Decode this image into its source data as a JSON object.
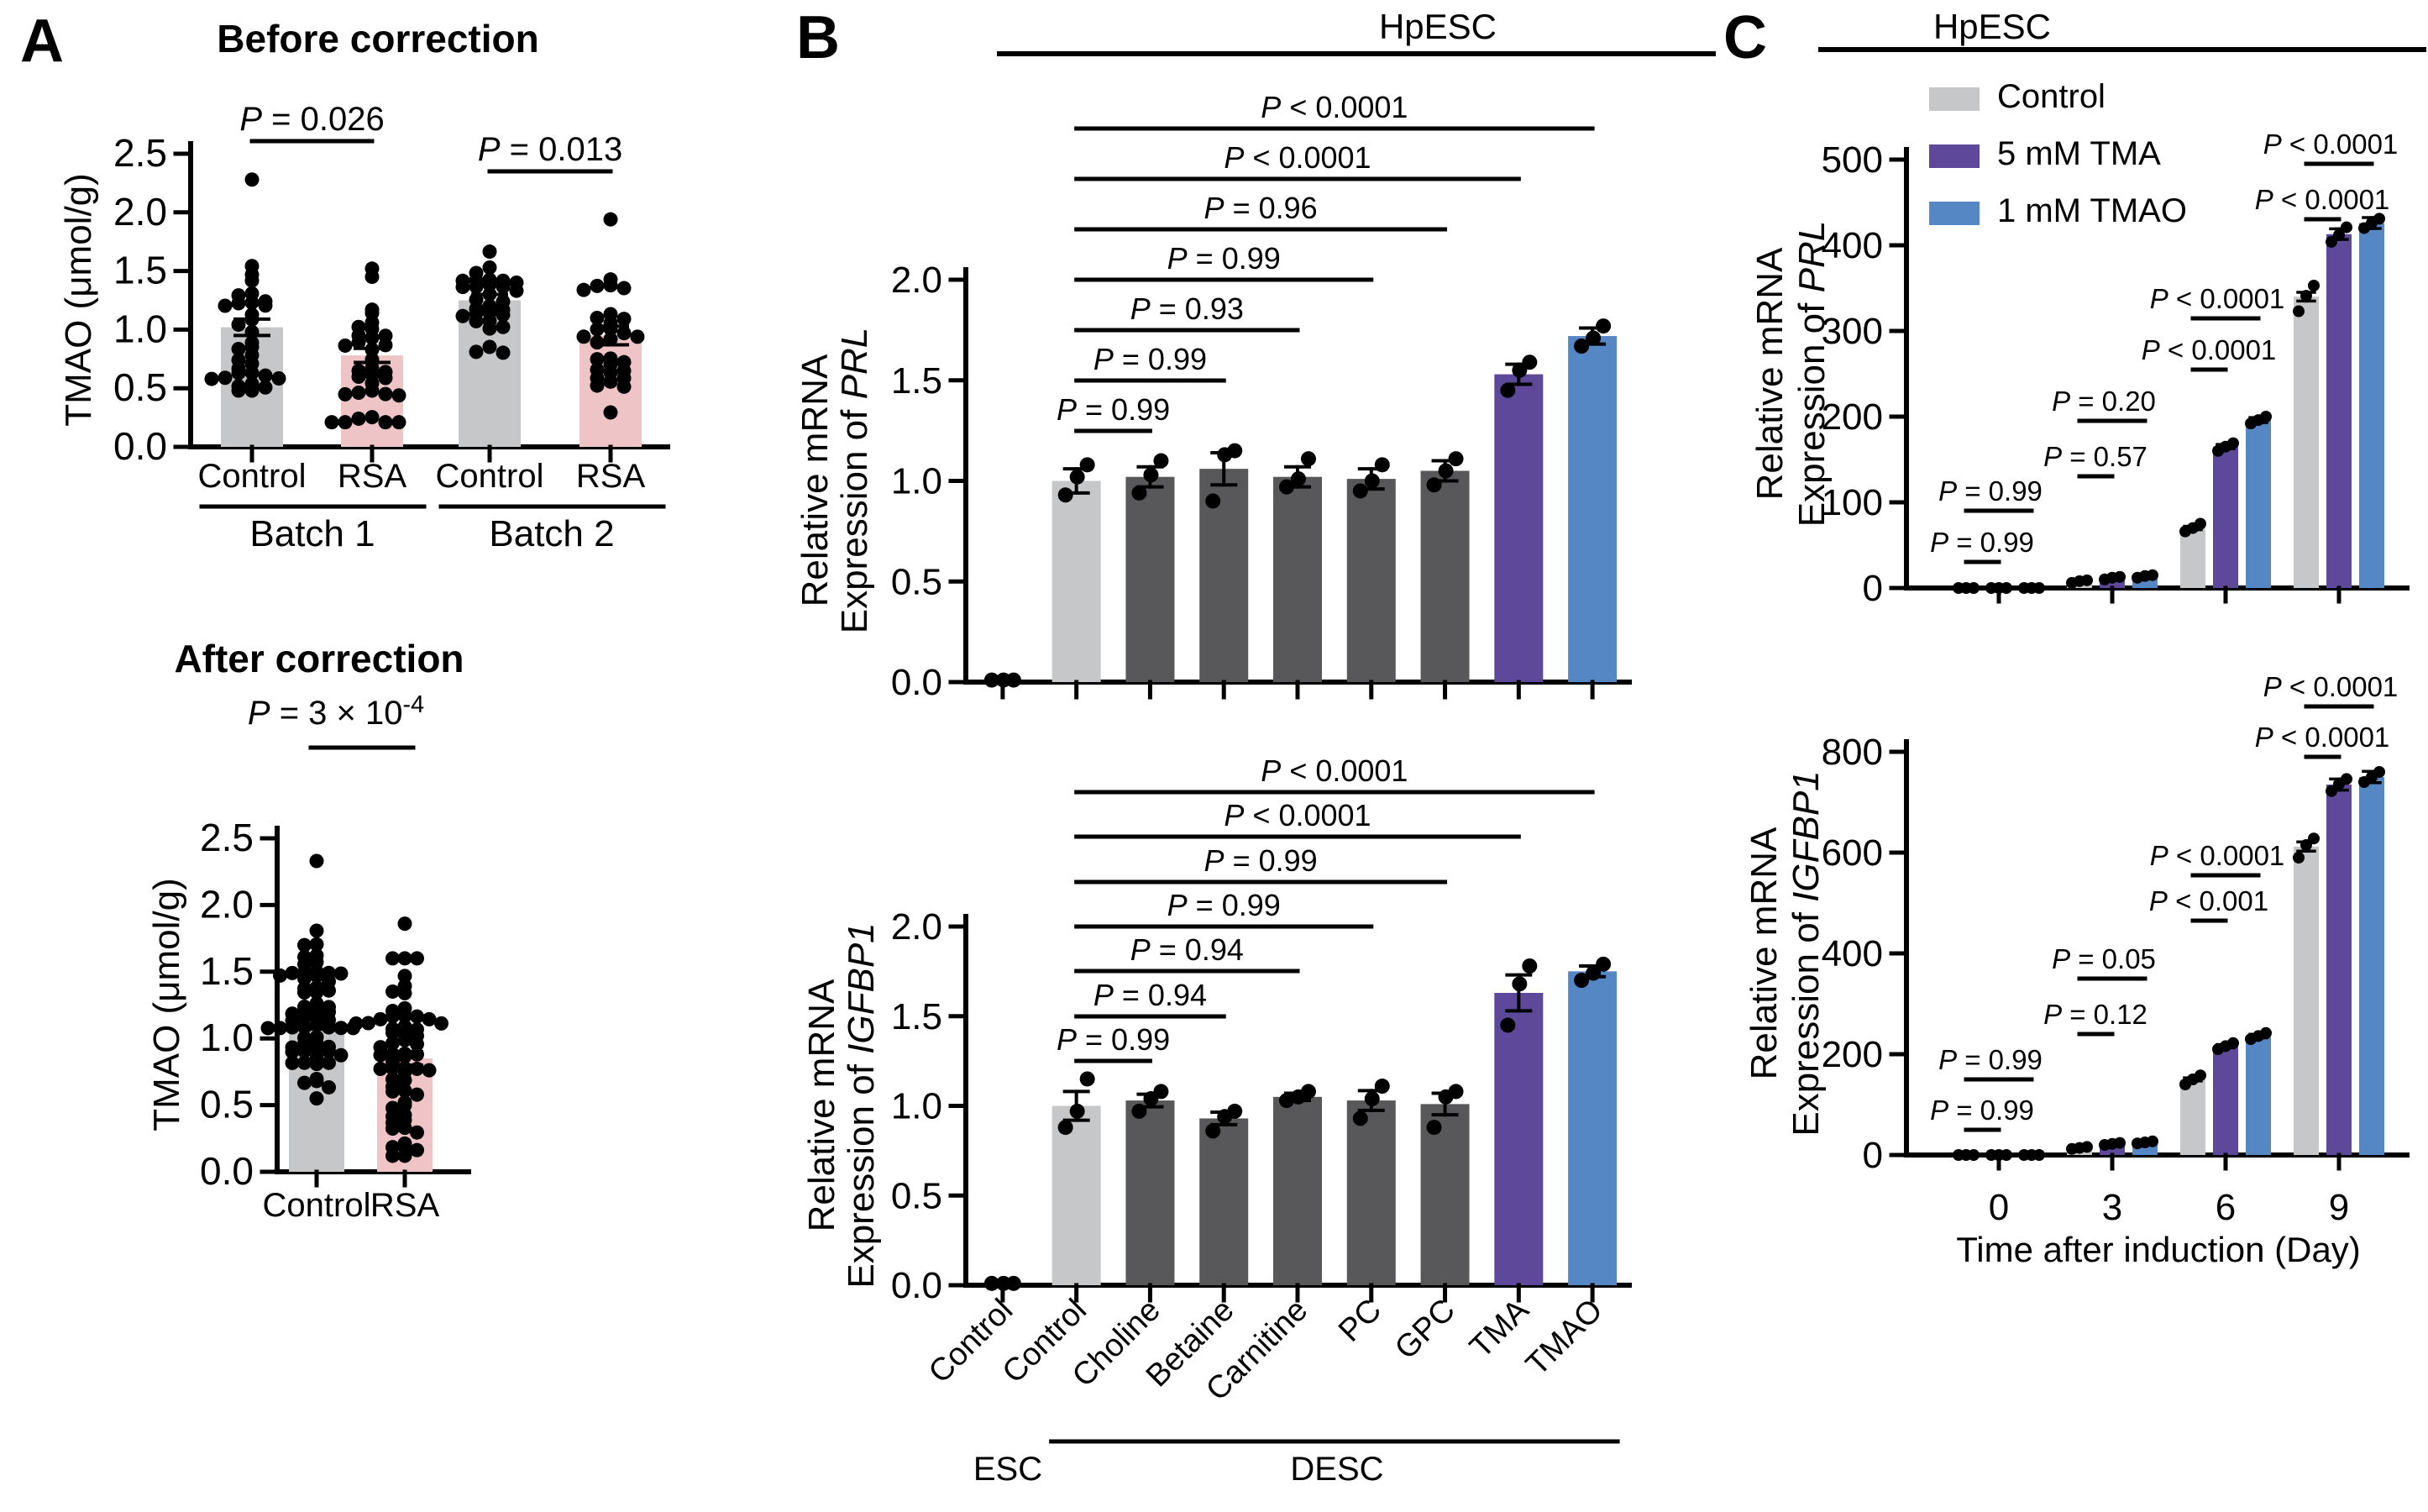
{
  "panels": {
    "a_label": "A",
    "b_label": "B",
    "c_label": "C"
  },
  "headers": {
    "b_hpesc": "HpESC",
    "c_hpesc": "HpESC"
  },
  "colors": {
    "gray": "#c6c7c8",
    "pink": "#efc4c6",
    "dark_gray": "#58585a",
    "purple": "#5d489a",
    "blue": "#5587c5",
    "black": "#000000"
  },
  "legend": {
    "items": [
      {
        "label": "Control",
        "color_key": "gray"
      },
      {
        "label": "5 mM TMA",
        "color_key": "purple"
      },
      {
        "label": "1 mM TMAO",
        "color_key": "blue"
      }
    ]
  },
  "chart_data": [
    {
      "id": "before_correction",
      "type": "bar",
      "title": "Before correction",
      "ylabel": "TMAO (μmol/g)",
      "ylim": [
        0,
        2.5
      ],
      "ytick_step": 0.5,
      "categories": [
        "Control",
        "RSA",
        "Control",
        "RSA"
      ],
      "group_labels": [
        "Batch 1",
        "Batch 2"
      ],
      "values": [
        1.02,
        0.78,
        1.25,
        0.95
      ],
      "sem": [
        0.07,
        0.06,
        0.05,
        0.08
      ],
      "bar_color_keys": [
        "gray",
        "pink",
        "gray",
        "pink"
      ],
      "scatter": [
        {
          "n": 33,
          "center": 0.95,
          "spread": 0.38,
          "min": 0.48,
          "max": 1.85,
          "outliers": [
            2.28
          ]
        },
        {
          "n": 33,
          "center": 0.72,
          "spread": 0.3,
          "min": 0.21,
          "max": 1.45,
          "outliers": [
            1.52
          ]
        },
        {
          "n": 30,
          "center": 1.22,
          "spread": 0.27,
          "min": 0.68,
          "max": 1.82,
          "outliers": []
        },
        {
          "n": 30,
          "center": 0.9,
          "spread": 0.33,
          "min": 0.26,
          "max": 1.6,
          "outliers": [
            1.94
          ]
        }
      ],
      "brackets": [
        {
          "from": 0,
          "to": 1,
          "label": "P = 0.026"
        },
        {
          "from": 2,
          "to": 3,
          "label": "P = 0.013"
        }
      ]
    },
    {
      "id": "after_correction",
      "type": "bar",
      "title": "After correction",
      "ylabel": "TMAO (μmol/g)",
      "ylim": [
        0,
        2.5
      ],
      "ytick_step": 0.5,
      "categories": [
        "Control",
        "RSA"
      ],
      "values": [
        1.12,
        0.85
      ],
      "sem": [
        0.05,
        0.05
      ],
      "bar_color_keys": [
        "gray",
        "pink"
      ],
      "scatter": [
        {
          "n": 62,
          "center": 1.08,
          "spread": 0.3,
          "min": 0.55,
          "max": 1.9,
          "outliers": [
            2.33
          ]
        },
        {
          "n": 62,
          "center": 0.82,
          "spread": 0.33,
          "min": 0.12,
          "max": 1.6,
          "outliers": [
            1.86
          ]
        }
      ],
      "brackets": [
        {
          "from": 0,
          "to": 1,
          "label": "P = 3 × 10",
          "sup": "-4"
        }
      ]
    },
    {
      "id": "prl_desc",
      "type": "bar",
      "title": "",
      "ylabel_lines": [
        "Relative mRNA",
        "Expression of "
      ],
      "ylabel_italic": "PRL",
      "ylim": [
        0,
        2.0
      ],
      "ytick_step": 0.5,
      "categories": [
        "Control",
        "Control",
        "Choline",
        "Betaine",
        "Carnitine",
        "PC",
        "GPC",
        "TMA",
        "TMAO"
      ],
      "axis_group_labels": [
        {
          "label": "ESC",
          "span": [
            0,
            0
          ]
        },
        {
          "label": "DESC",
          "span": [
            1,
            8
          ]
        }
      ],
      "values": [
        0,
        1.0,
        1.02,
        1.06,
        1.02,
        1.01,
        1.05,
        1.53,
        1.72
      ],
      "sem": [
        0,
        0.06,
        0.05,
        0.08,
        0.05,
        0.05,
        0.05,
        0.05,
        0.04
      ],
      "dots": [
        [
          0.01,
          0.01,
          0.01
        ],
        [
          0.93,
          1.02,
          1.08
        ],
        [
          0.94,
          1.03,
          1.1
        ],
        [
          0.9,
          1.13,
          1.15
        ],
        [
          0.97,
          1.01,
          1.11
        ],
        [
          0.95,
          1.0,
          1.08
        ],
        [
          0.98,
          1.05,
          1.11
        ],
        [
          1.45,
          1.55,
          1.59
        ],
        [
          1.67,
          1.71,
          1.77
        ]
      ],
      "bar_color_keys": [
        "gray",
        "gray",
        "dark_gray",
        "dark_gray",
        "dark_gray",
        "dark_gray",
        "dark_gray",
        "purple",
        "blue"
      ],
      "brackets": [
        {
          "from": 1,
          "to": 2,
          "label": "P = 0.99"
        },
        {
          "from": 1,
          "to": 3,
          "label": "P = 0.99"
        },
        {
          "from": 1,
          "to": 4,
          "label": "P = 0.93"
        },
        {
          "from": 1,
          "to": 5,
          "label": "P = 0.99"
        },
        {
          "from": 1,
          "to": 6,
          "label": "P = 0.96"
        },
        {
          "from": 1,
          "to": 7,
          "label": "P < 0.0001"
        },
        {
          "from": 1,
          "to": 8,
          "label": "P < 0.0001"
        }
      ]
    },
    {
      "id": "igfbp1_desc",
      "type": "bar",
      "title": "",
      "ylabel_lines": [
        "Relative mRNA",
        "Expression of "
      ],
      "ylabel_italic": "IGFBP1",
      "ylim": [
        0,
        2.0
      ],
      "ytick_step": 0.5,
      "categories": [
        "Control",
        "Control",
        "Choline",
        "Betaine",
        "Carnitine",
        "PC",
        "GPC",
        "TMA",
        "TMAO"
      ],
      "axis_group_labels": [
        {
          "label": "ESC",
          "span": [
            0,
            0
          ]
        },
        {
          "label": "DESC",
          "span": [
            1,
            8
          ]
        }
      ],
      "values": [
        0,
        1.0,
        1.03,
        0.93,
        1.05,
        1.03,
        1.01,
        1.63,
        1.75
      ],
      "sem": [
        0,
        0.08,
        0.035,
        0.035,
        0.02,
        0.055,
        0.06,
        0.1,
        0.03
      ],
      "dots": [
        [
          0.01,
          0.01,
          0.01
        ],
        [
          0.88,
          0.97,
          1.15
        ],
        [
          0.97,
          1.04,
          1.08
        ],
        [
          0.86,
          0.94,
          0.97
        ],
        [
          1.03,
          1.05,
          1.08
        ],
        [
          0.93,
          1.04,
          1.11
        ],
        [
          0.88,
          1.05,
          1.08
        ],
        [
          1.45,
          1.68,
          1.78
        ],
        [
          1.7,
          1.74,
          1.79
        ]
      ],
      "bar_color_keys": [
        "gray",
        "gray",
        "dark_gray",
        "dark_gray",
        "dark_gray",
        "dark_gray",
        "dark_gray",
        "purple",
        "blue"
      ],
      "brackets": [
        {
          "from": 1,
          "to": 2,
          "label": "P = 0.99"
        },
        {
          "from": 1,
          "to": 3,
          "label": "P = 0.94"
        },
        {
          "from": 1,
          "to": 4,
          "label": "P = 0.94"
        },
        {
          "from": 1,
          "to": 5,
          "label": "P = 0.99"
        },
        {
          "from": 1,
          "to": 6,
          "label": "P = 0.99"
        },
        {
          "from": 1,
          "to": 7,
          "label": "P < 0.0001"
        },
        {
          "from": 1,
          "to": 8,
          "label": "P < 0.0001"
        }
      ]
    },
    {
      "id": "prl_timecourse",
      "type": "grouped_bar",
      "ylabel_lines": [
        "Relative mRNA",
        "Expression of "
      ],
      "ylabel_italic": "PRL",
      "ylim": [
        0,
        500
      ],
      "ytick_step": 100,
      "categories": [
        "0",
        "3",
        "6",
        "9"
      ],
      "series": [
        {
          "name": "Control",
          "color_key": "gray",
          "values": [
            0,
            8,
            70,
            340
          ],
          "dots": [
            [
              0,
              0,
              0
            ],
            [
              6,
              8,
              9
            ],
            [
              66,
              70,
              75
            ],
            [
              323,
              341,
              353
            ]
          ]
        },
        {
          "name": "5 mM TMA",
          "color_key": "purple",
          "values": [
            0,
            12,
            165,
            413
          ],
          "dots": [
            [
              0,
              0,
              0
            ],
            [
              10,
              12,
              13
            ],
            [
              160,
              165,
              169
            ],
            [
              404,
              412,
              421
            ]
          ]
        },
        {
          "name": "1 mM TMAO",
          "color_key": "blue",
          "values": [
            0,
            14,
            196,
            426
          ],
          "dots": [
            [
              0,
              0,
              0
            ],
            [
              12,
              14,
              15
            ],
            [
              192,
              196,
              200
            ],
            [
              420,
              426,
              431
            ]
          ]
        }
      ],
      "bracket_pairs": [
        {
          "control_vs_tma": "P = 0.99",
          "control_vs_tmao": "P = 0.99"
        },
        {
          "control_vs_tma": "P = 0.57",
          "control_vs_tmao": "P = 0.20"
        },
        {
          "control_vs_tma": "P < 0.0001",
          "control_vs_tmao": "P < 0.0001"
        },
        {
          "control_vs_tma": "P < 0.0001",
          "control_vs_tmao": "P < 0.0001"
        }
      ]
    },
    {
      "id": "igfbp1_timecourse",
      "type": "grouped_bar",
      "ylabel_lines": [
        "Relative mRNA",
        "Expression of "
      ],
      "ylabel_italic": "IGFBP1",
      "ylim": [
        0,
        800
      ],
      "ytick_step": 200,
      "categories": [
        "0",
        "3",
        "6",
        "9"
      ],
      "xlabel": "Time after induction (Day)",
      "series": [
        {
          "name": "Control",
          "color_key": "gray",
          "values": [
            0,
            14,
            150,
            612
          ],
          "dots": [
            [
              0,
              0,
              0
            ],
            [
              12,
              14,
              16
            ],
            [
              140,
              150,
              158
            ],
            [
              590,
              615,
              628
            ]
          ]
        },
        {
          "name": "5 mM TMA",
          "color_key": "purple",
          "values": [
            0,
            22,
            216,
            735
          ],
          "dots": [
            [
              0,
              0,
              0
            ],
            [
              20,
              22,
              24
            ],
            [
              210,
              216,
              222
            ],
            [
              722,
              736,
              746
            ]
          ]
        },
        {
          "name": "1 mM TMAO",
          "color_key": "blue",
          "values": [
            0,
            25,
            236,
            750
          ],
          "dots": [
            [
              0,
              0,
              0
            ],
            [
              23,
              25,
              27
            ],
            [
              230,
              236,
              242
            ],
            [
              740,
              750,
              760
            ]
          ]
        }
      ],
      "bracket_pairs": [
        {
          "control_vs_tma": "P = 0.99",
          "control_vs_tmao": "P = 0.99"
        },
        {
          "control_vs_tma": "P = 0.12",
          "control_vs_tmao": "P = 0.05"
        },
        {
          "control_vs_tma": "P < 0.001",
          "control_vs_tmao": "P < 0.0001"
        },
        {
          "control_vs_tma": "P < 0.0001",
          "control_vs_tmao": "P < 0.0001"
        }
      ]
    }
  ]
}
